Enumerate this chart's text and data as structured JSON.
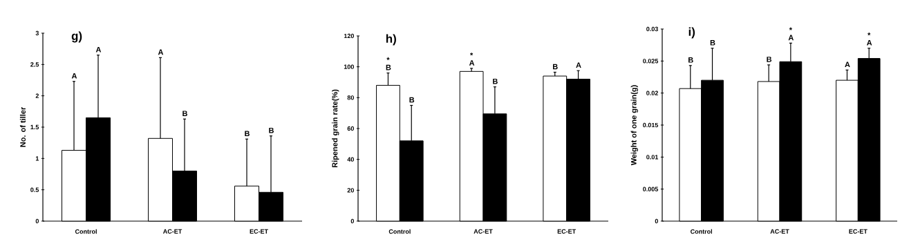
{
  "chart_data": [
    {
      "type": "bar",
      "title": "g)",
      "ylabel": "No. of tiller",
      "categories": [
        "Control",
        "AC-ET",
        "EC-ET"
      ],
      "series": [
        {
          "color": "#ffffff",
          "values": [
            1.13,
            1.32,
            0.56
          ],
          "errors": [
            [
              1.13,
              2.23
            ],
            [
              1.32,
              2.61
            ],
            [
              0.56,
              1.31
            ]
          ]
        },
        {
          "color": "#000000",
          "values": [
            1.65,
            0.8,
            0.46
          ],
          "errors": [
            [
              1.65,
              2.65
            ],
            [
              0.8,
              1.63
            ],
            [
              0.46,
              1.36
            ]
          ]
        }
      ],
      "ylim": [
        0,
        3
      ],
      "yticks": [
        0,
        0.5,
        1,
        1.5,
        2,
        2.5,
        3
      ],
      "annotations": [
        "A",
        "A",
        "A",
        "B",
        "B",
        "B"
      ]
    },
    {
      "type": "bar",
      "title": "h)",
      "ylabel": "Ripened grain rate(%)",
      "categories": [
        "Control",
        "AC-ET",
        "EC-ET"
      ],
      "series": [
        {
          "color": "#ffffff",
          "values": [
            88,
            97,
            94
          ],
          "errors": [
            [
              88,
              96
            ],
            [
              97,
              99
            ],
            [
              94,
              96.5
            ]
          ]
        },
        {
          "color": "#000000",
          "values": [
            52,
            69.5,
            92
          ],
          "errors": [
            [
              52,
              75
            ],
            [
              69.5,
              87
            ],
            [
              92,
              97.5
            ]
          ]
        }
      ],
      "ylim": [
        0,
        120
      ],
      "yticks": [
        0,
        20,
        40,
        60,
        80,
        100,
        120
      ],
      "annotations": [
        "* B",
        "B",
        "* A",
        "B",
        "B",
        "A"
      ]
    },
    {
      "type": "bar",
      "title": "i)",
      "ylabel": "Weight of one grain(g)",
      "categories": [
        "Control",
        "AC-ET",
        "EC-ET"
      ],
      "series": [
        {
          "color": "#ffffff",
          "values": [
            0.0207,
            0.0218,
            0.022
          ],
          "errors": [
            [
              0.0207,
              0.0243
            ],
            [
              0.0218,
              0.0244
            ],
            [
              0.022,
              0.0236
            ]
          ]
        },
        {
          "color": "#000000",
          "values": [
            0.022,
            0.0249,
            0.0254
          ],
          "errors": [
            [
              0.022,
              0.027
            ],
            [
              0.0249,
              0.0278
            ],
            [
              0.0254,
              0.027
            ]
          ]
        }
      ],
      "ylim": [
        0,
        0.03
      ],
      "yticks": [
        0,
        0.005,
        0.01,
        0.015,
        0.02,
        0.025,
        0.03
      ],
      "annotations": [
        "B",
        "B",
        "B",
        "* A",
        "A",
        "* A"
      ]
    }
  ]
}
